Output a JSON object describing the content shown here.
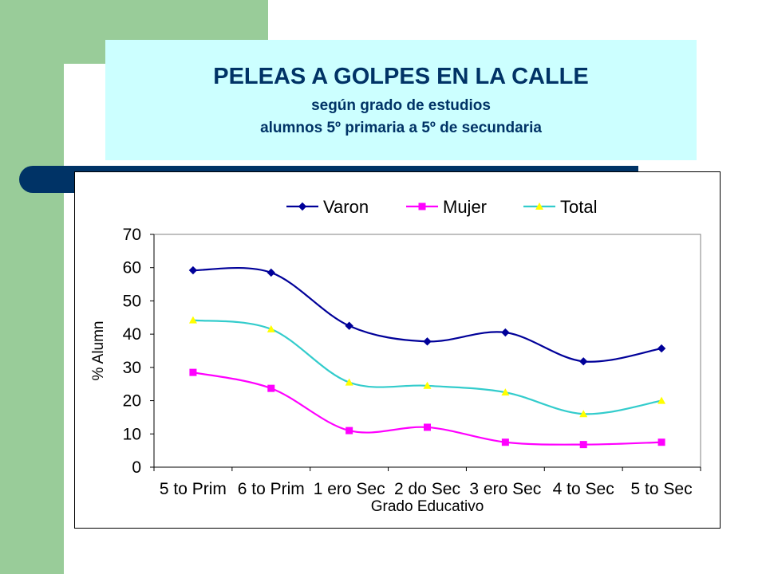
{
  "slide": {
    "title": "PELEAS A GOLPES EN LA CALLE",
    "subtitle_line1": "según grado de estudios",
    "subtitle_line2": "alumnos 5º primaria a 5º de secundaria"
  },
  "colors": {
    "green": "#99cc99",
    "title_box": "#ccffff",
    "navy": "#003366",
    "varon": "#000099",
    "mujer": "#ff00ff",
    "total": "#33cccc",
    "total_marker": "#ffff00"
  },
  "chart_data": {
    "type": "line",
    "xlabel": "Grado Educativo",
    "ylabel": "% Alumn",
    "ylim": [
      0,
      70
    ],
    "yticks": [
      0,
      10,
      20,
      30,
      40,
      50,
      60,
      70
    ],
    "grid": false,
    "legend_position": "top",
    "categories": [
      "5 to Prim",
      "6 to Prim",
      "1 ero Sec",
      "2 do Sec",
      "3 ero Sec",
      "4 to Sec",
      "5 to Sec"
    ],
    "series": [
      {
        "name": "Varon",
        "marker": "diamond",
        "values": [
          59.2,
          58.5,
          42.5,
          37.8,
          40.5,
          31.8,
          35.7
        ]
      },
      {
        "name": "Mujer",
        "marker": "square",
        "values": [
          28.5,
          23.7,
          11.0,
          12.0,
          7.5,
          6.8,
          7.5
        ]
      },
      {
        "name": "Total",
        "marker": "triangle",
        "values": [
          44.2,
          41.5,
          25.5,
          24.5,
          22.5,
          16.0,
          20.0
        ]
      }
    ]
  }
}
